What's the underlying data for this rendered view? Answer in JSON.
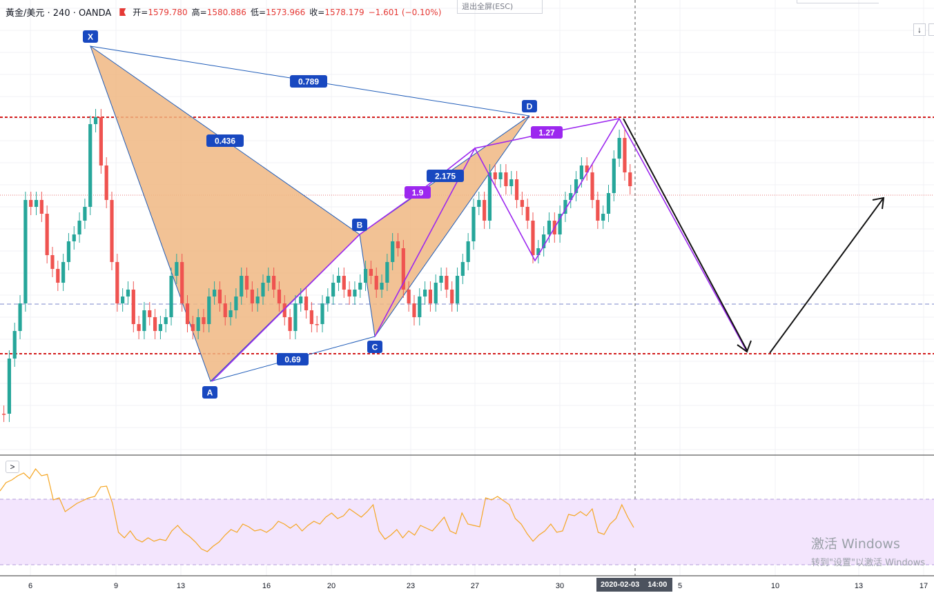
{
  "legend": {
    "symbol": "黃金/美元 · 240 · OANDA",
    "open_label": "开=",
    "open": "1579.780",
    "high_label": "高=",
    "high": "1580.886",
    "low_label": "低=",
    "low": "1573.966",
    "close_label": "收=",
    "close": "1578.179",
    "change": "−1.601 (−0.10%)"
  },
  "exit_fullscreen": "退出全屏(ESC)",
  "buttons": {
    "scroll_down": "↓",
    "expand_panel": ">"
  },
  "crosshair": {
    "date": "2020-02-03",
    "time": "14:00"
  },
  "watermark": {
    "line1": "激活 Windows",
    "line2": "转到\"设置\"以激活 Windows"
  },
  "x_axis_labels": [
    "6",
    "9",
    "13",
    "16",
    "20",
    "23",
    "27",
    "30",
    "5",
    "10",
    "13",
    "17"
  ],
  "pattern": {
    "points": [
      "X",
      "A",
      "B",
      "C",
      "D"
    ],
    "ratios": [
      "0.789",
      "0.436",
      "2.175",
      "0.69"
    ],
    "abcd_ratios": [
      "1.9",
      "1.27"
    ]
  },
  "colors": {
    "up": "#26a69a",
    "down": "#ef5350",
    "pattern_fill": "#f0b782",
    "pattern_line": "#1e5bb8",
    "label_bg": "#1848c0",
    "purple": "#9c27ef",
    "level_red": "#d21a1a",
    "rsi_band": "#f3e5fd",
    "rsi_line": "#f5a623"
  }
}
